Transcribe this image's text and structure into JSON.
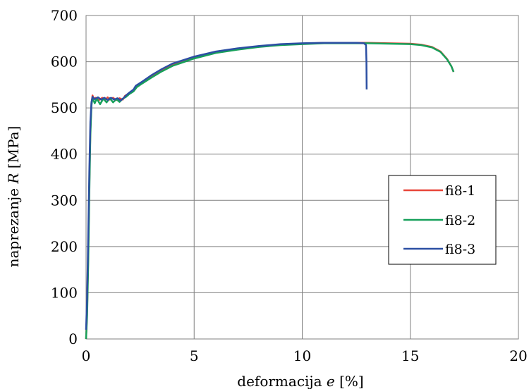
{
  "chart_data": {
    "type": "line",
    "title": "",
    "xlabel_prefix": "deformacija ",
    "xlabel_var": "e",
    "xlabel_suffix": " [%]",
    "ylabel_prefix": "naprezanje ",
    "ylabel_var": "R",
    "ylabel_suffix": " [MPa]",
    "xlim": [
      0,
      20
    ],
    "ylim": [
      0,
      700
    ],
    "x_ticks": [
      0,
      5,
      10,
      15,
      20
    ],
    "y_ticks": [
      0,
      100,
      200,
      300,
      400,
      500,
      600,
      700
    ],
    "x_tick_labels": [
      "0",
      "5",
      "10",
      "15",
      "20"
    ],
    "y_tick_labels": [
      "0",
      "100",
      "200",
      "300",
      "400",
      "500",
      "600",
      "700"
    ],
    "grid": true,
    "legend_position": "right-middle",
    "series": [
      {
        "name": "fi8-1",
        "color": "#e8463a",
        "points": [
          [
            0,
            0
          ],
          [
            0.05,
            60
          ],
          [
            0.1,
            180
          ],
          [
            0.15,
            330
          ],
          [
            0.2,
            450
          ],
          [
            0.25,
            510
          ],
          [
            0.3,
            527
          ],
          [
            0.35,
            520
          ],
          [
            0.45,
            522
          ],
          [
            0.6,
            517
          ],
          [
            0.75,
            522
          ],
          [
            0.9,
            518
          ],
          [
            1.0,
            523
          ],
          [
            1.1,
            518
          ],
          [
            1.25,
            522
          ],
          [
            1.4,
            517
          ],
          [
            1.55,
            521
          ],
          [
            1.7,
            518
          ],
          [
            1.8,
            526
          ],
          [
            2.0,
            532
          ],
          [
            2.2,
            538
          ],
          [
            2.3,
            545
          ],
          [
            2.6,
            555
          ],
          [
            3,
            568
          ],
          [
            3.5,
            582
          ],
          [
            4,
            594
          ],
          [
            5,
            610
          ],
          [
            6,
            621
          ],
          [
            7,
            628
          ],
          [
            8,
            633
          ],
          [
            9,
            637
          ],
          [
            10,
            639
          ],
          [
            11,
            641
          ],
          [
            12,
            641
          ],
          [
            13,
            641
          ],
          [
            14,
            640
          ],
          [
            15,
            639
          ],
          [
            15.5,
            637
          ],
          [
            16,
            632
          ],
          [
            16.4,
            622
          ],
          [
            16.7,
            606
          ],
          [
            16.9,
            590
          ],
          [
            17.0,
            578
          ]
        ]
      },
      {
        "name": "fi8-2",
        "color": "#17a05a",
        "points": [
          [
            0,
            0
          ],
          [
            0.05,
            50
          ],
          [
            0.1,
            160
          ],
          [
            0.15,
            310
          ],
          [
            0.2,
            440
          ],
          [
            0.25,
            505
          ],
          [
            0.3,
            522
          ],
          [
            0.4,
            510
          ],
          [
            0.5,
            520
          ],
          [
            0.65,
            508
          ],
          [
            0.8,
            520
          ],
          [
            0.95,
            512
          ],
          [
            1.1,
            521
          ],
          [
            1.25,
            512
          ],
          [
            1.4,
            519
          ],
          [
            1.55,
            513
          ],
          [
            1.7,
            520
          ],
          [
            1.85,
            524
          ],
          [
            2.0,
            530
          ],
          [
            2.2,
            536
          ],
          [
            2.35,
            545
          ],
          [
            2.6,
            553
          ],
          [
            3,
            565
          ],
          [
            3.5,
            579
          ],
          [
            4,
            591
          ],
          [
            5,
            607
          ],
          [
            6,
            619
          ],
          [
            7,
            626
          ],
          [
            8,
            632
          ],
          [
            9,
            636
          ],
          [
            10,
            638
          ],
          [
            11,
            640
          ],
          [
            12,
            640
          ],
          [
            13,
            640
          ],
          [
            14,
            639
          ],
          [
            15,
            638
          ],
          [
            15.5,
            636
          ],
          [
            16,
            631
          ],
          [
            16.4,
            621
          ],
          [
            16.7,
            605
          ],
          [
            16.9,
            590
          ],
          [
            17.0,
            578
          ]
        ]
      },
      {
        "name": "fi8-3",
        "color": "#2c4fa3",
        "points": [
          [
            0,
            20
          ],
          [
            0.05,
            90
          ],
          [
            0.1,
            220
          ],
          [
            0.15,
            360
          ],
          [
            0.2,
            470
          ],
          [
            0.25,
            512
          ],
          [
            0.3,
            524
          ],
          [
            0.4,
            519
          ],
          [
            0.55,
            523
          ],
          [
            0.7,
            518
          ],
          [
            0.85,
            522
          ],
          [
            1.0,
            517
          ],
          [
            1.15,
            522
          ],
          [
            1.3,
            518
          ],
          [
            1.45,
            521
          ],
          [
            1.6,
            516
          ],
          [
            1.75,
            522
          ],
          [
            1.85,
            527
          ],
          [
            2.0,
            533
          ],
          [
            2.2,
            540
          ],
          [
            2.3,
            548
          ],
          [
            2.6,
            557
          ],
          [
            3,
            570
          ],
          [
            3.5,
            584
          ],
          [
            4,
            596
          ],
          [
            5,
            611
          ],
          [
            6,
            622
          ],
          [
            7,
            629
          ],
          [
            8,
            634
          ],
          [
            9,
            638
          ],
          [
            10,
            640
          ],
          [
            11,
            641
          ],
          [
            12,
            641
          ],
          [
            12.5,
            641
          ],
          [
            12.85,
            640
          ],
          [
            12.95,
            636
          ],
          [
            12.97,
            600
          ],
          [
            12.98,
            540
          ]
        ]
      }
    ]
  }
}
